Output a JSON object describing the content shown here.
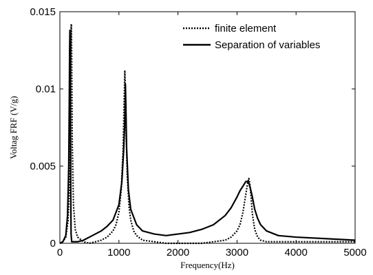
{
  "chart_data": {
    "type": "line",
    "title": "",
    "xlabel": "Frequency(Hz)",
    "ylabel": "Voltag FRF (V/g)",
    "xlim": [
      0,
      5000
    ],
    "ylim": [
      0,
      0.015
    ],
    "x_ticks": [
      0,
      1000,
      2000,
      3000,
      4000,
      5000
    ],
    "x_tick_labels": [
      "0",
      "1000",
      "2000",
      "3000",
      "4000",
      "5000"
    ],
    "y_ticks": [
      0,
      0.005,
      0.01,
      0.015
    ],
    "y_tick_labels": [
      "0",
      "0.005",
      "0.01",
      "0.015"
    ],
    "grid": false,
    "legend_position": "top-right",
    "series": [
      {
        "name": "finite element",
        "style": "dotted",
        "color": "#000000",
        "x": [
          0,
          50,
          100,
          140,
          160,
          175,
          185,
          190,
          195,
          200,
          210,
          230,
          260,
          300,
          400,
          500,
          600,
          700,
          800,
          900,
          950,
          1000,
          1040,
          1070,
          1090,
          1100,
          1110,
          1120,
          1140,
          1170,
          1200,
          1250,
          1300,
          1400,
          1600,
          1800,
          2000,
          2200,
          2400,
          2600,
          2800,
          2900,
          3000,
          3050,
          3100,
          3150,
          3180,
          3200,
          3220,
          3240,
          3260,
          3300,
          3350,
          3400,
          3500,
          3700,
          4000,
          4500,
          5000
        ],
        "y": [
          0,
          0.0001,
          0.0004,
          0.0015,
          0.0035,
          0.0075,
          0.0125,
          0.0141,
          0.0142,
          0.0125,
          0.0065,
          0.0025,
          0.0009,
          0.0004,
          0.0001,
          0.0,
          0.0001,
          0.0002,
          0.0004,
          0.0008,
          0.0012,
          0.002,
          0.0035,
          0.006,
          0.0095,
          0.0112,
          0.0098,
          0.0075,
          0.0045,
          0.0024,
          0.0015,
          0.0008,
          0.0005,
          0.0002,
          0.0001,
          0.0,
          0.0,
          0.0,
          0.0,
          0.0001,
          0.0002,
          0.0004,
          0.0008,
          0.0012,
          0.002,
          0.0032,
          0.0039,
          0.0042,
          0.0038,
          0.0029,
          0.0019,
          0.0009,
          0.0004,
          0.0002,
          0.0001,
          0.0001,
          0.0001,
          0.0001,
          0.0001
        ]
      },
      {
        "name": "Separation of variables",
        "style": "solid",
        "color": "#000000",
        "x": [
          0,
          50,
          100,
          130,
          150,
          160,
          165,
          170,
          175,
          180,
          185,
          190,
          200,
          300,
          400,
          500,
          600,
          700,
          800,
          900,
          1000,
          1050,
          1080,
          1100,
          1110,
          1120,
          1130,
          1160,
          1200,
          1300,
          1400,
          1600,
          1800,
          2000,
          2200,
          2400,
          2600,
          2800,
          2900,
          3000,
          3050,
          3100,
          3150,
          3180,
          3200,
          3230,
          3260,
          3300,
          3350,
          3400,
          3500,
          3700,
          4000,
          4500,
          5000
        ],
        "y": [
          0,
          0.0001,
          0.0005,
          0.0018,
          0.005,
          0.0095,
          0.0125,
          0.0138,
          0.0125,
          0.0085,
          0.003,
          0.0006,
          0.0001,
          0.0001,
          0.0002,
          0.0004,
          0.0006,
          0.0008,
          0.0011,
          0.0015,
          0.0025,
          0.004,
          0.006,
          0.008,
          0.0103,
          0.0085,
          0.0062,
          0.0035,
          0.0022,
          0.0012,
          0.0008,
          0.0006,
          0.0005,
          0.0006,
          0.0007,
          0.0009,
          0.0012,
          0.0018,
          0.0023,
          0.003,
          0.0034,
          0.0037,
          0.004,
          0.004,
          0.0039,
          0.0035,
          0.003,
          0.0022,
          0.0016,
          0.0012,
          0.0008,
          0.0005,
          0.0004,
          0.0003,
          0.0002
        ]
      }
    ]
  }
}
